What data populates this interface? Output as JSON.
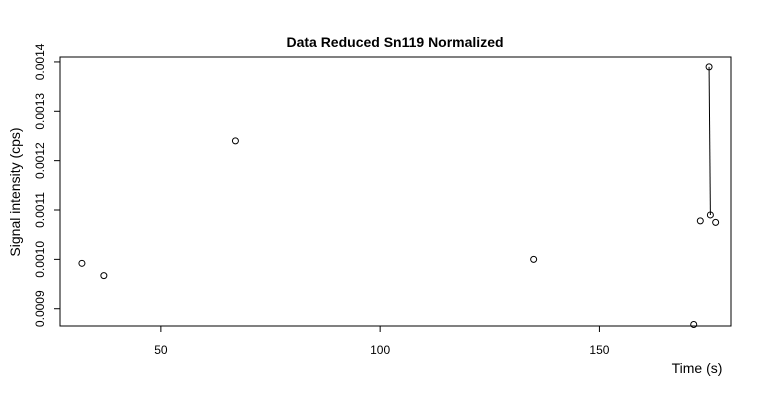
{
  "chart_data": {
    "type": "scatter",
    "title": "Data Reduced Sn119 Normalized",
    "xlabel": "Time (s)",
    "ylabel": "Signal intensity (cps)",
    "xlim": [
      27,
      180
    ],
    "ylim": [
      0.000865,
      0.00141
    ],
    "x_ticks": [
      50,
      100,
      150
    ],
    "y_ticks": [
      0.0009,
      0.001,
      0.0011,
      0.0012,
      0.0013,
      0.0014
    ],
    "x_tick_labels": [
      "50",
      "100",
      "150"
    ],
    "y_tick_labels": [
      "0.0009",
      "0.0010",
      "0.0011",
      "0.0012",
      "0.0013",
      "0.0014"
    ],
    "grid": false,
    "legend": "none",
    "points": [
      {
        "x": 32,
        "y": 0.000992
      },
      {
        "x": 37,
        "y": 0.000967
      },
      {
        "x": 67,
        "y": 0.00124
      },
      {
        "x": 135,
        "y": 0.001
      },
      {
        "x": 171.5,
        "y": 0.000868
      },
      {
        "x": 173,
        "y": 0.001078
      },
      {
        "x": 175,
        "y": 0.00139
      },
      {
        "x": 175.3,
        "y": 0.00109
      },
      {
        "x": 176.5,
        "y": 0.001075
      }
    ],
    "segments": [
      {
        "from": {
          "x": 175,
          "y": 0.00139
        },
        "to": {
          "x": 175.3,
          "y": 0.00109
        }
      }
    ]
  }
}
